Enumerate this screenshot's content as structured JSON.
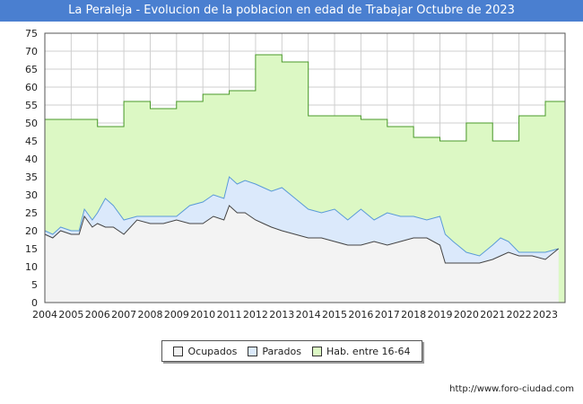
{
  "title": "La Peraleja - Evolucion de la poblacion en edad de Trabajar Octubre de 2023",
  "footer_url": "http://www.foro-ciudad.com",
  "legend": [
    {
      "label": "Ocupados",
      "color": "#f3f3f3"
    },
    {
      "label": "Parados",
      "color": "#dbe9fb"
    },
    {
      "label": "Hab. entre 16-64",
      "color": "#dcf8c4"
    }
  ],
  "chart_data": {
    "type": "area",
    "xlim": [
      2004,
      2023.75
    ],
    "ylim": [
      0,
      75
    ],
    "x_ticks": [
      "2004",
      "2005",
      "2006",
      "2007",
      "2008",
      "2009",
      "2010",
      "2011",
      "2012",
      "2013",
      "2014",
      "2015",
      "2016",
      "2017",
      "2018",
      "2019",
      "2020",
      "2021",
      "2022",
      "2023"
    ],
    "y_ticks": [
      "0",
      "5",
      "10",
      "15",
      "20",
      "25",
      "30",
      "35",
      "40",
      "45",
      "50",
      "55",
      "60",
      "65",
      "70",
      "75"
    ],
    "grid": true,
    "legend_position": "bottom",
    "series": [
      {
        "name": "Hab. entre 16-64",
        "color": "#dcf8c4",
        "line_color": "#4a9a2a",
        "x": [
          2004,
          2006,
          2007,
          2008,
          2009,
          2010,
          2011,
          2012,
          2013,
          2014,
          2015,
          2016,
          2017,
          2018,
          2019,
          2020,
          2021,
          2022,
          2023,
          2023.75
        ],
        "values": [
          51,
          49,
          56,
          54,
          56,
          58,
          59,
          69,
          67,
          52,
          52,
          51,
          49,
          46,
          45,
          50,
          45,
          52,
          56,
          56
        ]
      },
      {
        "name": "Parados",
        "color": "#dbe9fb",
        "line_color": "#5a9ad8",
        "x": [
          2004,
          2004.3,
          2004.6,
          2005,
          2005.3,
          2005.5,
          2005.8,
          2006,
          2006.3,
          2006.6,
          2007,
          2007.5,
          2008,
          2008.5,
          2009,
          2009.5,
          2010,
          2010.4,
          2010.8,
          2011,
          2011.3,
          2011.6,
          2012,
          2012.3,
          2012.6,
          2013,
          2013.5,
          2014,
          2014.5,
          2015,
          2015.5,
          2016,
          2016.5,
          2017,
          2017.5,
          2018,
          2018.5,
          2019,
          2019.2,
          2019.5,
          2020,
          2020.5,
          2021,
          2021.3,
          2021.6,
          2022,
          2022.5,
          2023,
          2023.5
        ],
        "values": [
          20,
          19,
          21,
          20,
          20,
          26,
          23,
          25,
          29,
          27,
          23,
          24,
          24,
          24,
          24,
          27,
          28,
          30,
          29,
          35,
          33,
          34,
          33,
          32,
          31,
          32,
          29,
          26,
          25,
          26,
          23,
          26,
          23,
          25,
          24,
          24,
          23,
          24,
          19,
          17,
          14,
          13,
          16,
          18,
          17,
          14,
          14,
          14,
          15
        ]
      },
      {
        "name": "Ocupados",
        "color": "#f3f3f3",
        "line_color": "#444444",
        "x": [
          2004,
          2004.3,
          2004.6,
          2005,
          2005.3,
          2005.5,
          2005.8,
          2006,
          2006.3,
          2006.6,
          2007,
          2007.5,
          2008,
          2008.5,
          2009,
          2009.5,
          2010,
          2010.4,
          2010.8,
          2011,
          2011.3,
          2011.6,
          2012,
          2012.3,
          2012.6,
          2013,
          2013.5,
          2014,
          2014.5,
          2015,
          2015.5,
          2016,
          2016.5,
          2017,
          2017.5,
          2018,
          2018.5,
          2019,
          2019.2,
          2019.5,
          2020,
          2020.5,
          2021,
          2021.3,
          2021.6,
          2022,
          2022.5,
          2023,
          2023.5
        ],
        "values": [
          19,
          18,
          20,
          19,
          19,
          24,
          21,
          22,
          21,
          21,
          19,
          23,
          22,
          22,
          23,
          22,
          22,
          24,
          23,
          27,
          25,
          25,
          23,
          22,
          21,
          20,
          19,
          18,
          18,
          17,
          16,
          16,
          17,
          16,
          17,
          18,
          18,
          16,
          11,
          11,
          11,
          11,
          12,
          13,
          14,
          13,
          13,
          12,
          15
        ]
      }
    ]
  }
}
